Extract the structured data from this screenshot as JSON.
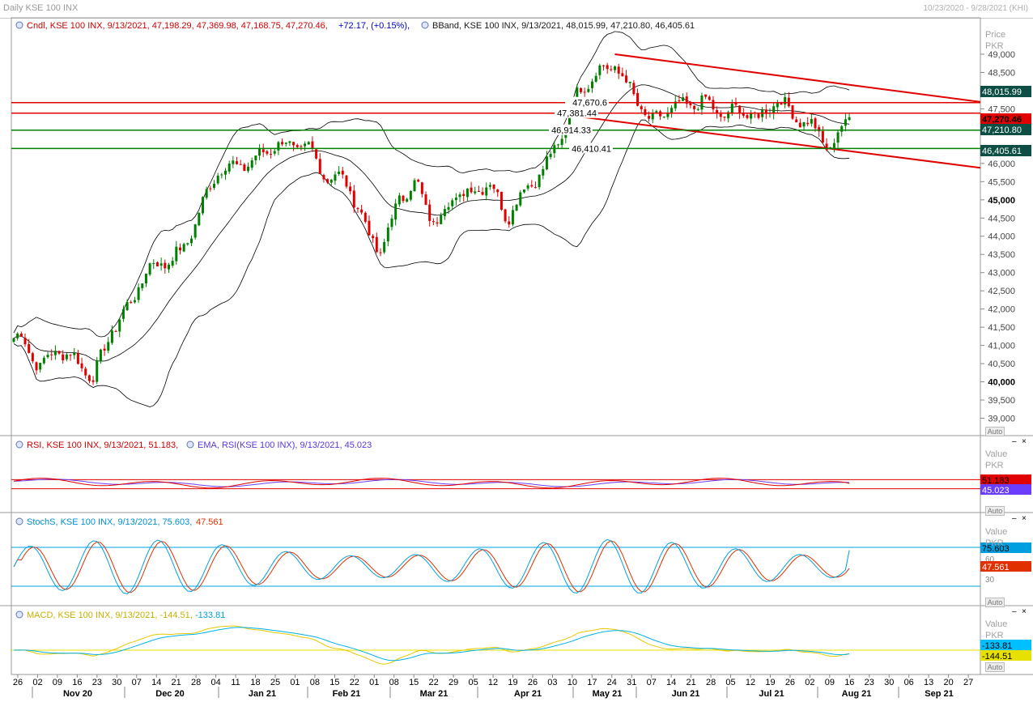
{
  "window": {
    "title": "Daily KSE 100 INX",
    "range": "10/23/2020 - 9/28/2021 (KHI)"
  },
  "legends": {
    "price_candle": "Cndl, KSE 100 INX, 9/13/2021, 47,198.29, 47,369.98, 47,168.75, 47,270.46,",
    "price_change": "+72.17, (+0.15%),",
    "price_bband": "BBand, KSE 100 INX, 9/13/2021, 48,015.99, 47,210.80, 46,405.61",
    "rsi": "RSI, KSE 100 INX, 9/13/2021, 51.183,",
    "rsi_ema": "EMA, RSI(KSE 100 INX), 9/13/2021, 45.023",
    "stoch_a": "StochS, KSE 100 INX, 9/13/2021, 75.603,",
    "stoch_b": "47.561",
    "macd_a": "MACD, KSE 100 INX, 9/13/2021, -144.51,",
    "macd_b": "-133.81"
  },
  "axis_headers": {
    "price": [
      "Price",
      "PKR"
    ],
    "value": [
      "Value",
      "PKR"
    ],
    "auto": "Auto",
    "minimize": "–",
    "close": "×"
  },
  "price_labels": [
    {
      "text": "49,000",
      "bold": false
    },
    {
      "text": "48,500",
      "bold": false
    },
    {
      "text": "47,500",
      "bold": false
    },
    {
      "text": "46,000",
      "bold": false
    },
    {
      "text": "45,500",
      "bold": false
    },
    {
      "text": "45,000",
      "bold": true
    },
    {
      "text": "44,500",
      "bold": false
    },
    {
      "text": "44,000",
      "bold": false
    },
    {
      "text": "43,500",
      "bold": false
    },
    {
      "text": "43,000",
      "bold": false
    },
    {
      "text": "42,500",
      "bold": false
    },
    {
      "text": "42,000",
      "bold": false
    },
    {
      "text": "41,500",
      "bold": false
    },
    {
      "text": "41,000",
      "bold": false
    },
    {
      "text": "40,500",
      "bold": false
    },
    {
      "text": "40,000",
      "bold": true
    },
    {
      "text": "39,500",
      "bold": false
    },
    {
      "text": "39,000",
      "bold": false
    }
  ],
  "price_tags": [
    {
      "text": "48,015.99",
      "bg": "#0d4f44",
      "fg": "#ffffff"
    },
    {
      "text": "47,270.46",
      "bg": "#e00000",
      "fg": "#000000"
    },
    {
      "text": "47,210.80",
      "bg": "#0d4f44",
      "fg": "#ffffff"
    },
    {
      "text": "46,405.61",
      "bg": "#0d4f44",
      "fg": "#ffffff"
    }
  ],
  "hlines": [
    {
      "label": "47,670.6",
      "value": 47670.6,
      "color": "#e00000"
    },
    {
      "label": "47,381.44",
      "value": 47381.44,
      "color": "#e00000"
    },
    {
      "label": "46,914.33",
      "value": 46914.33,
      "color": "#008000"
    },
    {
      "label": "46,410.41",
      "value": 46410.41,
      "color": "#008000"
    }
  ],
  "rsi_axis": {
    "tags": [
      {
        "text": "51.183",
        "bg": "#e00000",
        "fg": "#000000"
      },
      {
        "text": "45.023",
        "bg": "#6a3dff",
        "fg": "#ffffff"
      }
    ],
    "levels": [
      70,
      30
    ]
  },
  "stoch_axis": {
    "ticks": [
      "60",
      "30"
    ],
    "tags": [
      {
        "text": "75.603",
        "bg": "#00a0e0",
        "fg": "#000000"
      },
      {
        "text": "47.561",
        "bg": "#e03000",
        "fg": "#ffffff"
      }
    ],
    "levels": [
      80,
      20
    ]
  },
  "macd_axis": {
    "tags": [
      {
        "text": "-133.81",
        "bg": "#00bfff",
        "fg": "#000000"
      },
      {
        "text": "-144.51",
        "bg": "#e8e000",
        "fg": "#000000"
      }
    ]
  },
  "x_axis": {
    "days": [
      "26",
      "02",
      "09",
      "16",
      "23",
      "30",
      "07",
      "14",
      "21",
      "28",
      "04",
      "11",
      "18",
      "25",
      "01",
      "08",
      "15",
      "22",
      "01",
      "08",
      "15",
      "22",
      "29",
      "05",
      "12",
      "19",
      "26",
      "03",
      "10",
      "17",
      "24",
      "31",
      "07",
      "14",
      "21",
      "28",
      "05",
      "12",
      "19",
      "26",
      "02",
      "09",
      "16",
      "23",
      "30",
      "06",
      "13",
      "20",
      "27"
    ],
    "months": [
      "Nov 20",
      "Dec 20",
      "Jan 21",
      "Feb 21",
      "Mar 21",
      "Apr 21",
      "May 21",
      "Jun 21",
      "Jul 21",
      "Aug 21",
      "Sep 21"
    ]
  },
  "colors": {
    "up": "#008000",
    "down": "#e00000",
    "band": "#000000",
    "rsi": "#e00000",
    "rsi_ema": "#6a3dff",
    "stoch_k": "#00a0e0",
    "stoch_d": "#e03000",
    "macd": "#e8c800",
    "macd_signal": "#00b0e8",
    "trend": "#e00000"
  },
  "chart_data": {
    "type": "candlestick",
    "title": "Daily KSE 100 INX",
    "ylabel": "Price PKR",
    "ylim": [
      38700,
      49600
    ],
    "date_range": [
      "2020-10-23",
      "2021-09-28"
    ],
    "approx_close_weekly": [
      {
        "x": "2020-10-26",
        "y": 41200
      },
      {
        "x": "2020-11-02",
        "y": 40400
      },
      {
        "x": "2020-11-09",
        "y": 40900
      },
      {
        "x": "2020-11-16",
        "y": 40600
      },
      {
        "x": "2020-11-23",
        "y": 40100
      },
      {
        "x": "2020-11-30",
        "y": 41400
      },
      {
        "x": "2020-12-07",
        "y": 42100
      },
      {
        "x": "2020-12-14",
        "y": 43100
      },
      {
        "x": "2020-12-21",
        "y": 43300
      },
      {
        "x": "2020-12-28",
        "y": 43600
      },
      {
        "x": "2021-01-04",
        "y": 44800
      },
      {
        "x": "2021-01-11",
        "y": 45900
      },
      {
        "x": "2021-01-18",
        "y": 45900
      },
      {
        "x": "2021-01-25",
        "y": 46100
      },
      {
        "x": "2021-02-01",
        "y": 46500
      },
      {
        "x": "2021-02-08",
        "y": 46500
      },
      {
        "x": "2021-02-15",
        "y": 46400
      },
      {
        "x": "2021-02-22",
        "y": 45600
      },
      {
        "x": "2021-03-01",
        "y": 45600
      },
      {
        "x": "2021-03-08",
        "y": 44400
      },
      {
        "x": "2021-03-15",
        "y": 43500
      },
      {
        "x": "2021-03-22",
        "y": 45100
      },
      {
        "x": "2021-03-29",
        "y": 45400
      },
      {
        "x": "2021-04-05",
        "y": 44300
      },
      {
        "x": "2021-04-12",
        "y": 45100
      },
      {
        "x": "2021-04-19",
        "y": 45200
      },
      {
        "x": "2021-04-26",
        "y": 45500
      },
      {
        "x": "2021-05-03",
        "y": 44500
      },
      {
        "x": "2021-05-10",
        "y": 45300
      },
      {
        "x": "2021-05-17",
        "y": 45800
      },
      {
        "x": "2021-05-24",
        "y": 46700
      },
      {
        "x": "2021-05-31",
        "y": 48000
      },
      {
        "x": "2021-06-07",
        "y": 48500
      },
      {
        "x": "2021-06-14",
        "y": 48700
      },
      {
        "x": "2021-06-21",
        "y": 47900
      },
      {
        "x": "2021-06-28",
        "y": 47100
      },
      {
        "x": "2021-07-05",
        "y": 47500
      },
      {
        "x": "2021-07-12",
        "y": 47600
      },
      {
        "x": "2021-07-19",
        "y": 47700
      },
      {
        "x": "2021-07-26",
        "y": 47300
      },
      {
        "x": "2021-08-02",
        "y": 47500
      },
      {
        "x": "2021-08-09",
        "y": 47200
      },
      {
        "x": "2021-08-16",
        "y": 47800
      },
      {
        "x": "2021-08-23",
        "y": 47300
      },
      {
        "x": "2021-08-30",
        "y": 47000
      },
      {
        "x": "2021-09-06",
        "y": 46400
      },
      {
        "x": "2021-09-13",
        "y": 47270.46
      }
    ],
    "last_bar": {
      "date": "2021-09-13",
      "open": 47198.29,
      "high": 47369.98,
      "low": 47168.75,
      "close": 47270.46,
      "change": 72.17,
      "change_pct": 0.15
    },
    "bollinger_last": {
      "upper": 48015.99,
      "middle": 47210.8,
      "lower": 46405.61
    },
    "horizontal_lines": [
      47670.6,
      47381.44,
      46914.33,
      46410.41
    ],
    "trend_channel": {
      "upper_start": {
        "x": "2021-06-14",
        "y": 49000
      },
      "upper_end": {
        "x": "2021-09-28",
        "y": 47690
      },
      "lower_start": {
        "x": "2021-05-24",
        "y": 47350
      },
      "lower_end": {
        "x": "2021-09-28",
        "y": 45880
      }
    },
    "rsi_last": 51.183,
    "rsi_ema_last": 45.023,
    "stoch_last": {
      "k": 75.603,
      "d": 47.561
    },
    "macd_last": {
      "macd": -144.51,
      "signal": -133.81
    }
  }
}
